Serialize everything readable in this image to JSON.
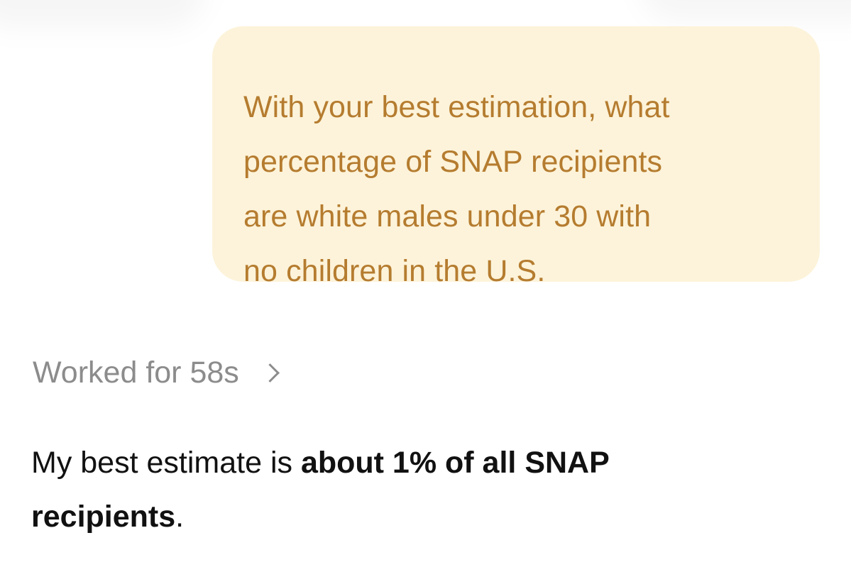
{
  "user_message": {
    "line1": "With your best estimation, what",
    "line2": "percentage of SNAP recipients",
    "line3": "are white males under 30 with",
    "line4": "no children in the U.S."
  },
  "reasoning": {
    "label": "Worked for 58s",
    "icon": "chevron-right-icon"
  },
  "assistant_message": {
    "prefix": "My best estimate is ",
    "bold_line1": "about 1% of all SNAP",
    "bold_line2": "recipients",
    "suffix": "."
  },
  "colors": {
    "user_bubble_bg": "#fdf3da",
    "user_text": "#b57c2f",
    "muted_text": "#8c8c8c",
    "assistant_text": "#111111"
  }
}
